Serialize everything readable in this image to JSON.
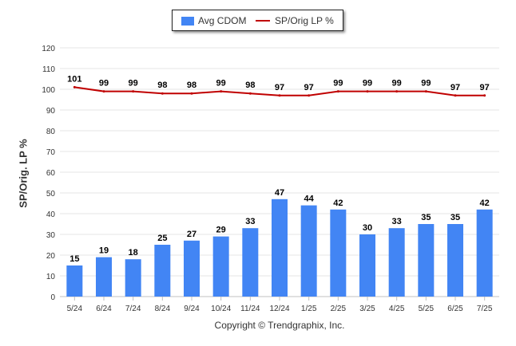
{
  "chart_data": {
    "type": "bar",
    "categories": [
      "5/24",
      "6/24",
      "7/24",
      "8/24",
      "9/24",
      "10/24",
      "11/24",
      "12/24",
      "1/25",
      "2/25",
      "3/25",
      "4/25",
      "5/25",
      "6/25",
      "7/25"
    ],
    "series": [
      {
        "name": "Avg CDOM",
        "type": "bar",
        "color": "#4285f4",
        "values": [
          15,
          19,
          18,
          25,
          27,
          29,
          33,
          47,
          44,
          42,
          30,
          33,
          35,
          35,
          42
        ]
      },
      {
        "name": "SP/Orig LP %",
        "type": "line",
        "color": "#c00000",
        "values": [
          101,
          99,
          99,
          98,
          98,
          99,
          98,
          97,
          97,
          99,
          99,
          99,
          99,
          97,
          97
        ]
      }
    ],
    "ylabel": "SP/Orig. LP %",
    "xlabel": "",
    "ylim": [
      0,
      120
    ],
    "yticks": [
      0,
      10,
      20,
      30,
      40,
      50,
      60,
      70,
      80,
      90,
      100,
      110,
      120
    ],
    "grid": true,
    "legend": "top-center",
    "data_labels": true
  },
  "footer": "Copyright © Trendgraphix, Inc."
}
